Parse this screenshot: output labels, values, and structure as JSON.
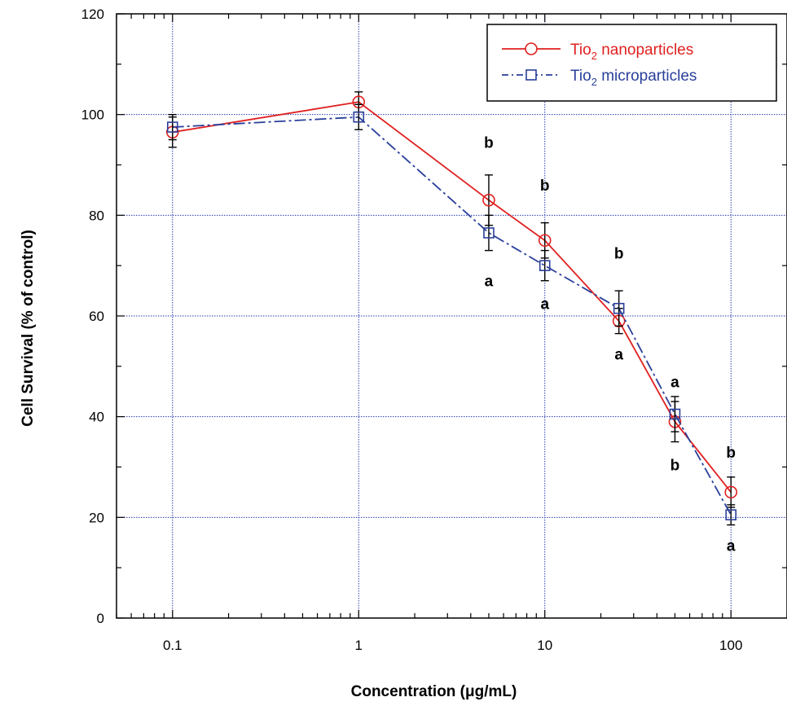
{
  "chart_data": {
    "type": "line",
    "xscale": "log",
    "xlim": [
      0.05,
      200
    ],
    "ylim": [
      0,
      120
    ],
    "xlabel": "Concentration (μg/mL)",
    "ylabel": "Cell Survival (% of control)",
    "xticks": [
      0.1,
      1,
      10,
      100
    ],
    "xtick_labels": [
      "0.1",
      "1",
      "10",
      "100"
    ],
    "yticks": [
      0,
      20,
      40,
      60,
      80,
      100,
      120
    ],
    "ytick_labels": [
      "0",
      "20",
      "40",
      "60",
      "80",
      "100",
      "120"
    ],
    "grid": true,
    "legend_position": "top-right",
    "series": [
      {
        "name": "Tio",
        "name_sub": "2",
        "name_rest": " nanoparticles",
        "color": "#e02020",
        "marker": "circle",
        "line_style": "solid",
        "x": [
          0.1,
          1,
          5,
          10,
          25,
          50,
          100
        ],
        "y": [
          96.5,
          102.5,
          83,
          75,
          59,
          39,
          25
        ],
        "err": [
          3,
          2,
          5,
          3.5,
          2.5,
          4,
          3
        ]
      },
      {
        "name": "Tio",
        "name_sub": "2",
        "name_rest": " microparticles",
        "color": "#2a3f9a",
        "marker": "square",
        "line_style": "dashed",
        "x": [
          0.1,
          1,
          5,
          10,
          25,
          50,
          100
        ],
        "y": [
          97.5,
          99.5,
          76.5,
          70,
          61.5,
          40.5,
          20.5
        ],
        "err": [
          2.5,
          2.5,
          3.5,
          3,
          3.5,
          3.5,
          2
        ]
      }
    ],
    "annotations": [
      {
        "text": "b",
        "x": 5,
        "y": 94.5
      },
      {
        "text": "a",
        "x": 5,
        "y": 67
      },
      {
        "text": "b",
        "x": 10,
        "y": 86
      },
      {
        "text": "a",
        "x": 10,
        "y": 62.5
      },
      {
        "text": "b",
        "x": 25,
        "y": 72.5
      },
      {
        "text": "a",
        "x": 25,
        "y": 52.5
      },
      {
        "text": "a",
        "x": 50,
        "y": 47
      },
      {
        "text": "b",
        "x": 50,
        "y": 30.5
      },
      {
        "text": "b",
        "x": 100,
        "y": 33
      },
      {
        "text": "a",
        "x": 100,
        "y": 14.5
      }
    ]
  }
}
